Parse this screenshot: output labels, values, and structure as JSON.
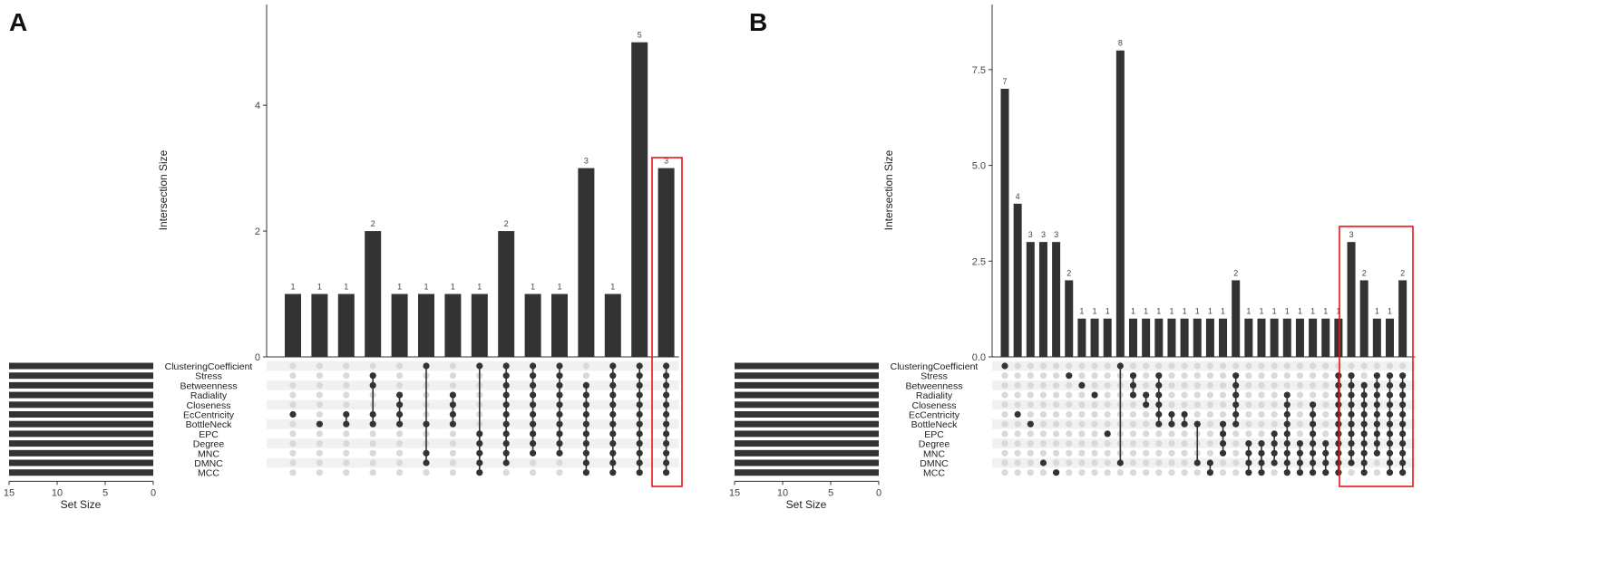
{
  "highlight_color": "#e8141b",
  "bar_color": "#333333",
  "dot_active_color": "#333333",
  "dot_inactive_color": "#d9d9d9",
  "stripe_color": "#f1f1f1",
  "chart_data": [
    {
      "type": "bar",
      "panel_label": "A",
      "ylabel": "Intersection Size",
      "xlabel": "Set Size",
      "ylim": [
        0,
        5.6
      ],
      "yticks": [
        "0",
        "2",
        "4"
      ],
      "ytick_values": [
        0,
        2,
        4
      ],
      "set_size_ticks": [
        "15",
        "10",
        "5",
        "0"
      ],
      "set_size_tick_values": [
        15,
        10,
        5,
        0
      ],
      "sets": [
        "ClusteringCoefficient",
        "Stress",
        "Betweenness",
        "Radiality",
        "Closeness",
        "EcCentricity",
        "BottleNeck",
        "EPC",
        "Degree",
        "MNC",
        "DMNC",
        "MCC"
      ],
      "set_sizes": [
        15,
        15,
        15,
        15,
        15,
        15,
        15,
        15,
        15,
        15,
        15,
        15
      ],
      "values": [
        1,
        1,
        1,
        2,
        1,
        1,
        1,
        1,
        2,
        1,
        1,
        3,
        1,
        5,
        3
      ],
      "labels": [
        "1",
        "1",
        "1",
        "2",
        "1",
        "1",
        "1",
        "1",
        "2",
        "1",
        "1",
        "3",
        "1",
        "5",
        "3"
      ],
      "memberships": [
        [
          5
        ],
        [
          6
        ],
        [
          5,
          6
        ],
        [
          1,
          2,
          5,
          6
        ],
        [
          3,
          4,
          5,
          6
        ],
        [
          0,
          6,
          9,
          10
        ],
        [
          3,
          4,
          5,
          6
        ],
        [
          0,
          7,
          8,
          9,
          10,
          11
        ],
        [
          0,
          1,
          2,
          3,
          4,
          5,
          6,
          7,
          8,
          9,
          10
        ],
        [
          0,
          1,
          2,
          3,
          4,
          5,
          6,
          7,
          8,
          9
        ],
        [
          0,
          1,
          2,
          3,
          4,
          5,
          6,
          7,
          8,
          9
        ],
        [
          2,
          3,
          4,
          5,
          6,
          7,
          8,
          9,
          10,
          11
        ],
        [
          0,
          1,
          2,
          3,
          4,
          5,
          6,
          7,
          8,
          9,
          10,
          11
        ],
        [
          0,
          1,
          2,
          3,
          4,
          5,
          6,
          7,
          8,
          9,
          10,
          11
        ],
        [
          0,
          1,
          2,
          3,
          4,
          5,
          6,
          7,
          8,
          9,
          10,
          11
        ]
      ],
      "highlight_columns": [
        14
      ]
    },
    {
      "type": "bar",
      "panel_label": "B",
      "ylabel": "Intersection Size",
      "xlabel": "Set Size",
      "ylim": [
        0,
        9.2
      ],
      "yticks": [
        "0.0",
        "2.5",
        "5.0",
        "7.5"
      ],
      "ytick_values": [
        0,
        2.5,
        5,
        7.5
      ],
      "set_size_ticks": [
        "15",
        "10",
        "5",
        "0"
      ],
      "set_size_tick_values": [
        15,
        10,
        5,
        0
      ],
      "sets": [
        "ClusteringCoefficient",
        "Stress",
        "Betweenness",
        "Radiality",
        "Closeness",
        "EcCentricity",
        "BottleNeck",
        "EPC",
        "Degree",
        "MNC",
        "DMNC",
        "MCC"
      ],
      "set_sizes": [
        15,
        15,
        15,
        15,
        15,
        15,
        15,
        15,
        15,
        15,
        15,
        15
      ],
      "values": [
        7,
        4,
        3,
        3,
        3,
        2,
        1,
        1,
        1,
        8,
        1,
        1,
        1,
        1,
        1,
        1,
        1,
        1,
        2,
        1,
        1,
        1,
        1,
        1,
        1,
        1,
        1,
        3,
        2,
        1,
        1,
        2
      ],
      "labels": [
        "7",
        "4",
        "3",
        "3",
        "3",
        "2",
        "1",
        "1",
        "1",
        "8",
        "1",
        "1",
        "1",
        "1",
        "1",
        "1",
        "1",
        "1",
        "2",
        "1",
        "1",
        "1",
        "1",
        "1",
        "1",
        "1",
        "1",
        "3",
        "2",
        "1",
        "1",
        "2"
      ],
      "memberships": [
        [
          0
        ],
        [
          5
        ],
        [
          6
        ],
        [
          10
        ],
        [
          11
        ],
        [
          1
        ],
        [
          2
        ],
        [
          3
        ],
        [
          7
        ],
        [
          0,
          10
        ],
        [
          1,
          2,
          3
        ],
        [
          3,
          4
        ],
        [
          1,
          2,
          3,
          4,
          5,
          6
        ],
        [
          5,
          6
        ],
        [
          5,
          6
        ],
        [
          6,
          10
        ],
        [
          10,
          11
        ],
        [
          6,
          7,
          8,
          9
        ],
        [
          1,
          2,
          3,
          4,
          5,
          6
        ],
        [
          8,
          9,
          10,
          11
        ],
        [
          8,
          9,
          10,
          11
        ],
        [
          7,
          8,
          9,
          10
        ],
        [
          3,
          4,
          5,
          6,
          7,
          8,
          9,
          10,
          11
        ],
        [
          8,
          9,
          10,
          11
        ],
        [
          4,
          5,
          6,
          7,
          8,
          9,
          10,
          11
        ],
        [
          8,
          9,
          10,
          11
        ],
        [
          1,
          2,
          3,
          4,
          5,
          6,
          7,
          8,
          9,
          10,
          11
        ],
        [
          1,
          2,
          3,
          4,
          5,
          6,
          7,
          8,
          9,
          10
        ],
        [
          2,
          3,
          4,
          5,
          6,
          7,
          8,
          9,
          10,
          11
        ],
        [
          1,
          2,
          3,
          4,
          5,
          6,
          7,
          8,
          9
        ],
        [
          1,
          2,
          3,
          4,
          5,
          6,
          7,
          8,
          9,
          10,
          11
        ],
        [
          1,
          2,
          3,
          4,
          5,
          6,
          7,
          8,
          9,
          10,
          11
        ]
      ],
      "highlight_columns": [
        27,
        28,
        29,
        30,
        31
      ]
    }
  ]
}
